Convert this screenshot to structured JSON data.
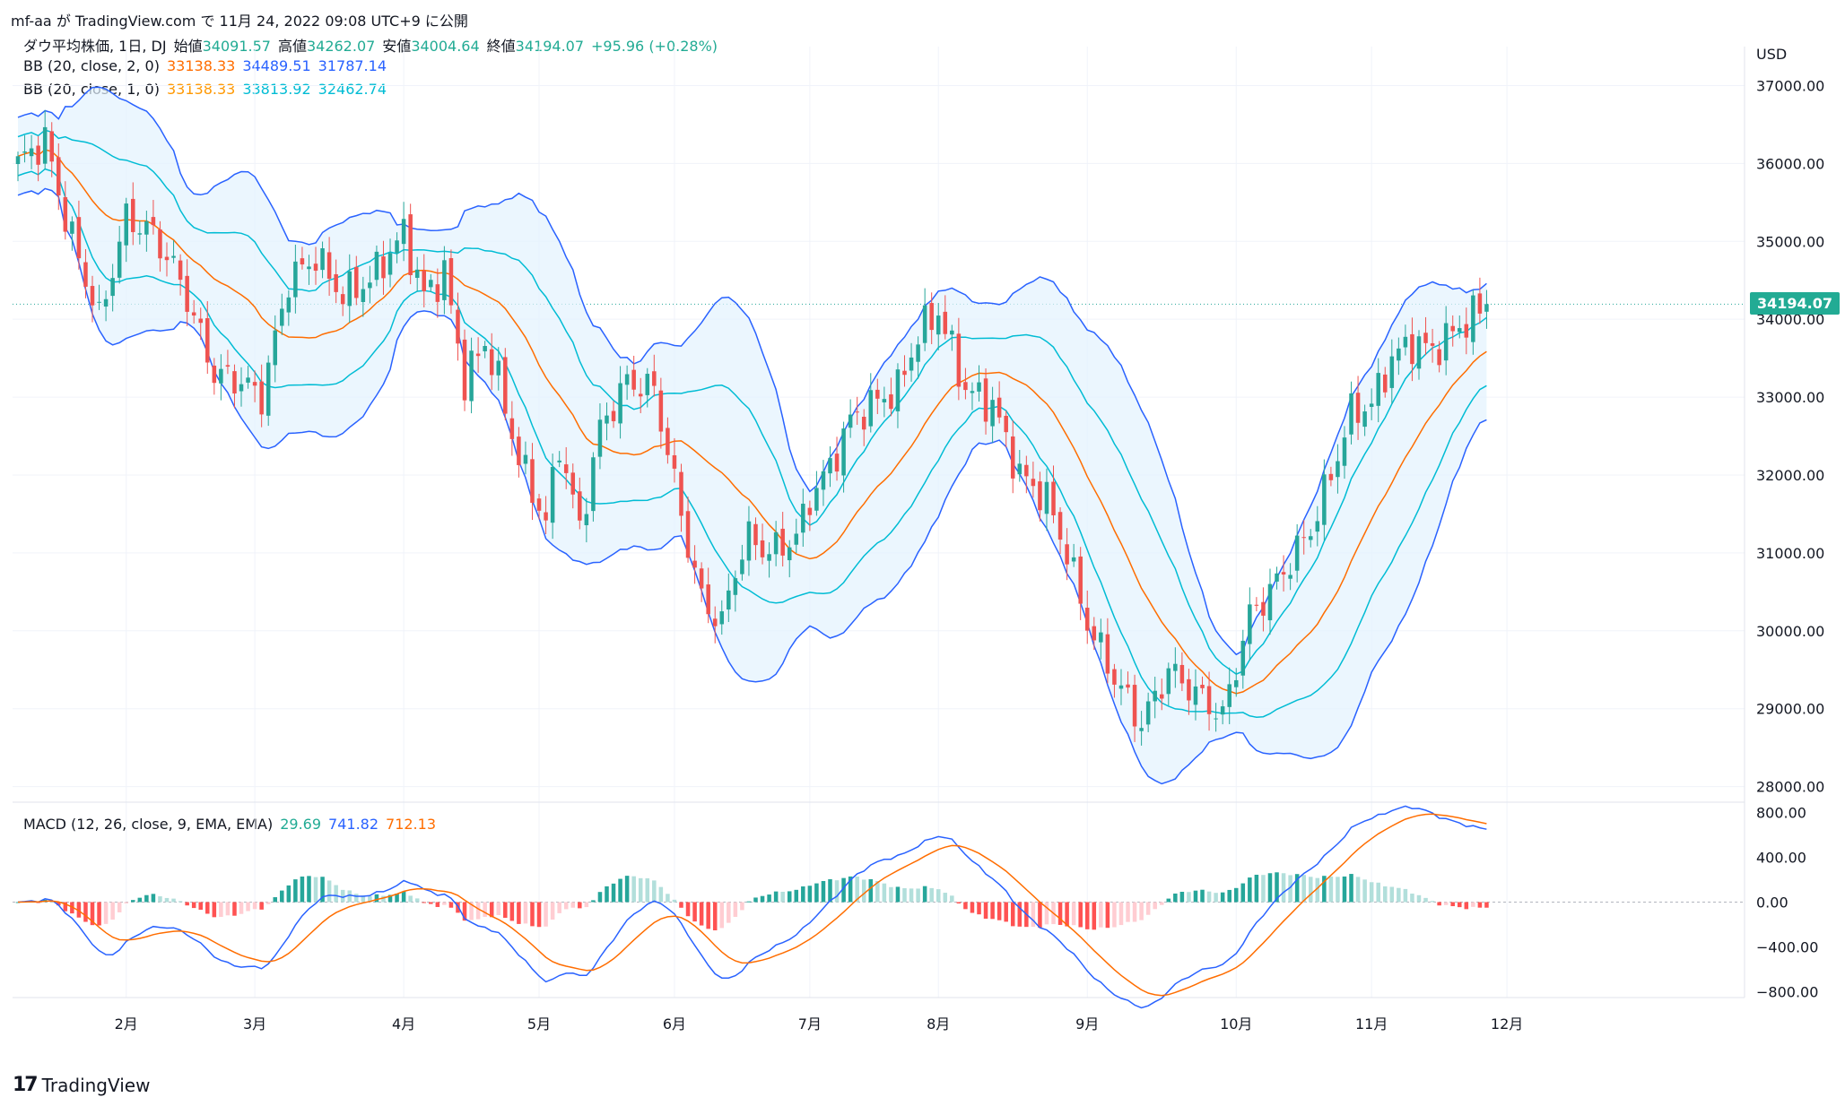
{
  "header": {
    "publish_line": "mf-aa が TradingView.com で 11月 24, 2022 09:08 UTC+9 に公開"
  },
  "legend": {
    "symbol": "ダウ平均株価, 1日, DJ",
    "open_label": "始値",
    "open": "34091.57",
    "high_label": "高値",
    "high": "34262.07",
    "low_label": "安値",
    "low": "34004.64",
    "close_label": "終値",
    "close": "34194.07",
    "change": "+95.96 (+0.28%)",
    "bb2_name": "BB (20, close, 2, 0)",
    "bb2_mid": "33138.33",
    "bb2_up": "34489.51",
    "bb2_lo": "31787.14",
    "bb1_name": "BB (20, close, 1, 0)",
    "bb1_mid": "33138.33",
    "bb1_up": "33813.92",
    "bb1_lo": "32462.74",
    "macd_name": "MACD (12, 26, close, 9, EMA, EMA)",
    "macd_hist": "29.69",
    "macd_line": "741.82",
    "macd_signal": "712.13"
  },
  "colors": {
    "up": "#26a69a",
    "down": "#ef5350",
    "bb_outer": "#2962ff",
    "bb_inner": "#00bcd4",
    "basis": "#ff6d00",
    "fill": "#e3f2fd",
    "macd": "#2962ff",
    "signal": "#ff6d00",
    "hist_up_strong": "#26a69a",
    "hist_up_weak": "#b2dfdb",
    "hist_dn_strong": "#ff5252",
    "hist_dn_weak": "#ffcdd2"
  },
  "last_price": "34194.07",
  "currency": "USD",
  "brand": "TradingView",
  "chart_data": [
    {
      "type": "candlestick",
      "title": "ダウ平均株価, 1日, DJ",
      "currency": "USD",
      "y_ticks": [
        "37000.00",
        "36000.00",
        "35000.00",
        "34000.00",
        "33000.00",
        "32000.00",
        "31000.00",
        "30000.00",
        "29000.00",
        "28000.00"
      ],
      "ylim": [
        27800,
        37500
      ],
      "x_ticks": [
        "2月",
        "3月",
        "4月",
        "5月",
        "6月",
        "7月",
        "8月",
        "9月",
        "10月",
        "11月",
        "12月"
      ],
      "x_tick_index": [
        16,
        35,
        57,
        77,
        97,
        117,
        136,
        158,
        180,
        200,
        220
      ],
      "num_bars": 241,
      "closes_anchor_index": [
        0,
        4,
        7,
        12,
        16,
        20,
        24,
        29,
        33,
        36,
        40,
        44,
        48,
        52,
        57,
        60,
        63,
        66,
        69,
        71,
        74,
        78,
        80,
        83,
        86,
        90,
        94,
        97,
        99,
        101,
        104,
        106,
        108,
        111,
        115,
        117,
        120,
        123,
        126,
        130,
        133,
        136,
        140,
        144,
        148,
        152,
        155,
        158,
        162,
        166,
        170,
        174,
        178,
        182,
        185,
        188,
        191,
        194,
        197,
        200,
        203,
        206,
        209,
        213,
        217
      ],
      "closes_anchor_value": [
        36000,
        36300,
        35300,
        34000,
        35300,
        35100,
        34500,
        33300,
        33200,
        33000,
        34500,
        34800,
        34300,
        34500,
        35100,
        34300,
        34600,
        33200,
        33700,
        33200,
        32200,
        31400,
        32400,
        31300,
        32600,
        33200,
        33100,
        31900,
        31100,
        30400,
        30100,
        30800,
        31200,
        31000,
        31200,
        31700,
        32100,
        32700,
        32900,
        33100,
        33800,
        34100,
        33100,
        32900,
        32000,
        31700,
        31000,
        30100,
        29400,
        28800,
        29500,
        29200,
        28900,
        30200,
        30500,
        30900,
        31300,
        32000,
        32800,
        32900,
        33500,
        33700,
        33600,
        33900,
        34194
      ]
    },
    {
      "type": "macd",
      "name": "MACD (12, 26, close, 9, EMA, EMA)",
      "y_ticks": [
        "800.00",
        "400.00",
        "0.00",
        "−400.00",
        "−800.00"
      ],
      "ylim": [
        -850,
        850
      ],
      "last": {
        "histogram": 29.69,
        "macd": 741.82,
        "signal": 712.13
      }
    }
  ]
}
